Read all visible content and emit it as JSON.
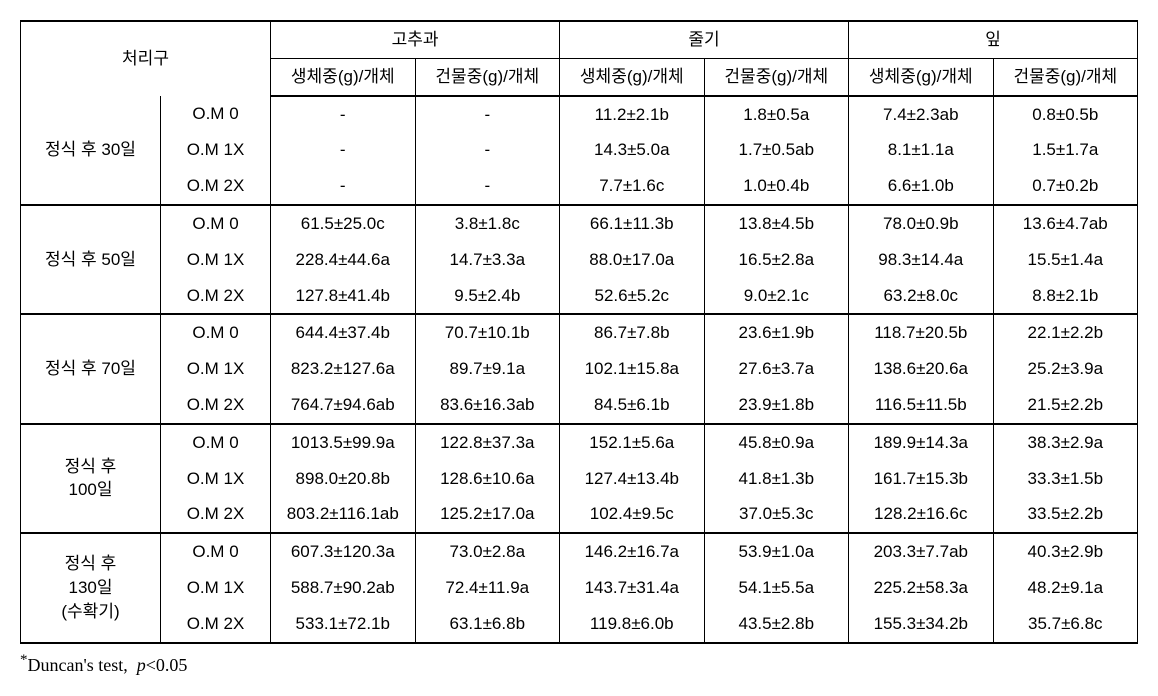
{
  "header": {
    "treatment": "처리구",
    "groups": [
      "고추과",
      "줄기",
      "잎"
    ],
    "sub_fresh": "생체중(g)/개체",
    "sub_dry": "건물중(g)/개체"
  },
  "footnote": {
    "symbol": "*",
    "test": "Duncan's test,",
    "psym": "p",
    "pval": "<0.05"
  },
  "periods": [
    {
      "label": "정식 후 30일",
      "rows": [
        {
          "treat": "O.M 0",
          "vals": [
            "-",
            "-",
            "11.2±2.1b",
            "1.8±0.5a",
            "7.4±2.3ab",
            "0.8±0.5b"
          ]
        },
        {
          "treat": "O.M 1X",
          "vals": [
            "-",
            "-",
            "14.3±5.0a",
            "1.7±0.5ab",
            "8.1±1.1a",
            "1.5±1.7a"
          ]
        },
        {
          "treat": "O.M 2X",
          "vals": [
            "-",
            "-",
            "7.7±1.6c",
            "1.0±0.4b",
            "6.6±1.0b",
            "0.7±0.2b"
          ]
        }
      ]
    },
    {
      "label": "정식 후 50일",
      "rows": [
        {
          "treat": "O.M 0",
          "vals": [
            "61.5±25.0c",
            "3.8±1.8c",
            "66.1±11.3b",
            "13.8±4.5b",
            "78.0±0.9b",
            "13.6±4.7ab"
          ]
        },
        {
          "treat": "O.M 1X",
          "vals": [
            "228.4±44.6a",
            "14.7±3.3a",
            "88.0±17.0a",
            "16.5±2.8a",
            "98.3±14.4a",
            "15.5±1.4a"
          ]
        },
        {
          "treat": "O.M 2X",
          "vals": [
            "127.8±41.4b",
            "9.5±2.4b",
            "52.6±5.2c",
            "9.0±2.1c",
            "63.2±8.0c",
            "8.8±2.1b"
          ]
        }
      ]
    },
    {
      "label": "정식 후 70일",
      "rows": [
        {
          "treat": "O.M 0",
          "vals": [
            "644.4±37.4b",
            "70.7±10.1b",
            "86.7±7.8b",
            "23.6±1.9b",
            "118.7±20.5b",
            "22.1±2.2b"
          ]
        },
        {
          "treat": "O.M 1X",
          "vals": [
            "823.2±127.6a",
            "89.7±9.1a",
            "102.1±15.8a",
            "27.6±3.7a",
            "138.6±20.6a",
            "25.2±3.9a"
          ]
        },
        {
          "treat": "O.M 2X",
          "vals": [
            "764.7±94.6ab",
            "83.6±16.3ab",
            "84.5±6.1b",
            "23.9±1.8b",
            "116.5±11.5b",
            "21.5±2.2b"
          ]
        }
      ]
    },
    {
      "label": "정식 후\n100일",
      "rows": [
        {
          "treat": "O.M 0",
          "vals": [
            "1013.5±99.9a",
            "122.8±37.3a",
            "152.1±5.6a",
            "45.8±0.9a",
            "189.9±14.3a",
            "38.3±2.9a"
          ]
        },
        {
          "treat": "O.M 1X",
          "vals": [
            "898.0±20.8b",
            "128.6±10.6a",
            "127.4±13.4b",
            "41.8±1.3b",
            "161.7±15.3b",
            "33.3±1.5b"
          ]
        },
        {
          "treat": "O.M 2X",
          "vals": [
            "803.2±116.1ab",
            "125.2±17.0a",
            "102.4±9.5c",
            "37.0±5.3c",
            "128.2±16.6c",
            "33.5±2.2b"
          ]
        }
      ]
    },
    {
      "label": "정식 후\n130일\n(수확기)",
      "rows": [
        {
          "treat": "O.M 0",
          "vals": [
            "607.3±120.3a",
            "73.0±2.8a",
            "146.2±16.7a",
            "53.9±1.0a",
            "203.3±7.7ab",
            "40.3±2.9b"
          ]
        },
        {
          "treat": "O.M 1X",
          "vals": [
            "588.7±90.2ab",
            "72.4±11.9a",
            "143.7±31.4a",
            "54.1±5.5a",
            "225.2±58.3a",
            "48.2±9.1a"
          ]
        },
        {
          "treat": "O.M 2X",
          "vals": [
            "533.1±72.1b",
            "63.1±6.8b",
            "119.8±6.0b",
            "43.5±2.8b",
            "155.3±34.2b",
            "35.7±6.8c"
          ]
        }
      ]
    }
  ]
}
